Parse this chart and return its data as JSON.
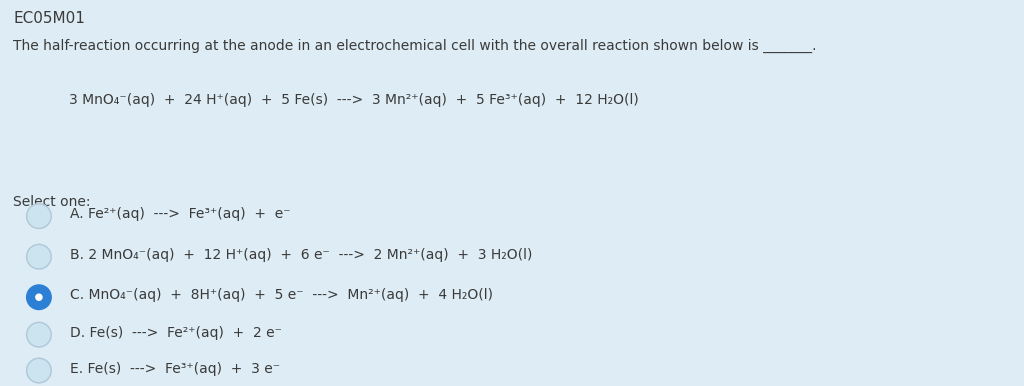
{
  "background_color": "#deedf5",
  "title": "EC05M01",
  "subtitle": "The half-reaction occurring at the anode in an electrochemical cell with the overall reaction shown below is _______.",
  "main_equation": "3 MnO₄⁻(aq)  +  24 H⁺(aq)  +  5 Fe(s)  --->  3 Mn²⁺(aq)  +  5 Fe³⁺(aq)  +  12 H₂O(l)",
  "select_label": "Select one:",
  "options": [
    "A. Fe²⁺(aq)  --->  Fe³⁺(aq)  +  e⁻",
    "B. 2 MnO₄⁻(aq)  +  12 H⁺(aq)  +  6 e⁻  --->  2 Mn²⁺(aq)  +  3 H₂O(l)",
    "C. MnO₄⁻(aq)  +  8H⁺(aq)  +  5 e⁻  --->  Mn²⁺(aq)  +  4 H₂O(l)",
    "D. Fe(s)  --->  Fe²⁺(aq)  +  2 e⁻",
    "E. Fe(s)  --->  Fe³⁺(aq)  +  3 e⁻"
  ],
  "selected_option": 2,
  "radio_color_selected": "#2b7fd4",
  "radio_color_empty_fill": "#cce3f0",
  "radio_edge_color": "#b0c8d8",
  "text_color": "#3a3a3a",
  "font_size_title": 11,
  "font_size_body": 10,
  "font_size_equation": 10
}
